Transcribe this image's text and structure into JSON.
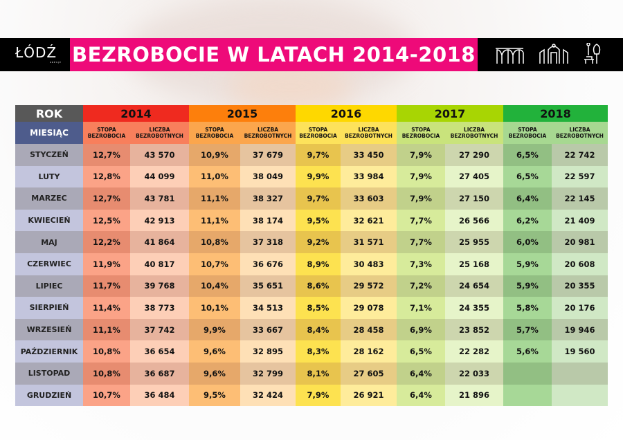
{
  "header": {
    "title": "BEZROBOCIE W LATACH 2014-2018",
    "logo_text": "ŁÓDŹ",
    "logo_sub": "KREUJE",
    "icons": [
      "arches-icon",
      "building-gate-icon",
      "park-bench-tree-icon"
    ],
    "title_bg": "#ee0a79"
  },
  "chart_data": {
    "type": "table",
    "corner_top": "ROK",
    "corner_bottom": "MIESIĄC",
    "col_headers": [
      "STOPA BEZROBOCIA",
      "LICZBA BEZROBOTNYCH"
    ],
    "months": [
      "STYCZEŃ",
      "LUTY",
      "MARZEC",
      "KWIECIEŃ",
      "MAJ",
      "CZERWIEC",
      "LIPIEC",
      "SIERPIEŃ",
      "WRZESIEŃ",
      "PAŹDZIERNIK",
      "LISTOPAD",
      "GRUDZIEŃ"
    ],
    "years": [
      {
        "year": "2014",
        "color": "#ef2a1f",
        "rate": [
          "12,7%",
          "12,8%",
          "12,7%",
          "12,5%",
          "12,2%",
          "11,9%",
          "11,7%",
          "11,4%",
          "11,1%",
          "10,8%",
          "10,8%",
          "10,7%"
        ],
        "count": [
          "43 570",
          "44 099",
          "43 781",
          "42 913",
          "41 864",
          "40 817",
          "39 768",
          "38 773",
          "37 742",
          "36 654",
          "36 687",
          "36 484"
        ]
      },
      {
        "year": "2015",
        "color": "#fd7f0c",
        "rate": [
          "10,9%",
          "11,0%",
          "11,1%",
          "11,1%",
          "10,8%",
          "10,7%",
          "10,4%",
          "10,1%",
          "9,9%",
          "9,6%",
          "9,6%",
          "9,5%"
        ],
        "count": [
          "37 679",
          "38 049",
          "38 327",
          "38 174",
          "37 318",
          "36 676",
          "35 651",
          "34 513",
          "33 667",
          "32 895",
          "32 799",
          "32 424"
        ]
      },
      {
        "year": "2016",
        "color": "#fed800",
        "rate": [
          "9,7%",
          "9,9%",
          "9,7%",
          "9,5%",
          "9,2%",
          "8,9%",
          "8,6%",
          "8,5%",
          "8,4%",
          "8,3%",
          "8,1%",
          "7,9%"
        ],
        "count": [
          "33 450",
          "33 984",
          "33 603",
          "32 621",
          "31 571",
          "30 483",
          "29 572",
          "29 078",
          "28 458",
          "28 162",
          "27 605",
          "26 921"
        ]
      },
      {
        "year": "2017",
        "color": "#a8d503",
        "rate": [
          "7,9%",
          "7,9%",
          "7,9%",
          "7,7%",
          "7,7%",
          "7,3%",
          "7,2%",
          "7,1%",
          "6,9%",
          "6,5%",
          "6,4%",
          "6,4%"
        ],
        "count": [
          "27 290",
          "27 405",
          "27 150",
          "26 566",
          "25 955",
          "25 168",
          "24 654",
          "24 355",
          "23 852",
          "22 282",
          "22 033",
          "21 896"
        ]
      },
      {
        "year": "2018",
        "color": "#22b23b",
        "rate": [
          "6,5%",
          "6,5%",
          "6,4%",
          "6,2%",
          "6,0%",
          "5,9%",
          "5,9%",
          "5,8%",
          "5,7%",
          "5,6%",
          "",
          ""
        ],
        "count": [
          "22 742",
          "22 597",
          "22 145",
          "21 409",
          "20 981",
          "20 608",
          "20 355",
          "20 176",
          "19 946",
          "19 560",
          "",
          ""
        ]
      }
    ]
  }
}
